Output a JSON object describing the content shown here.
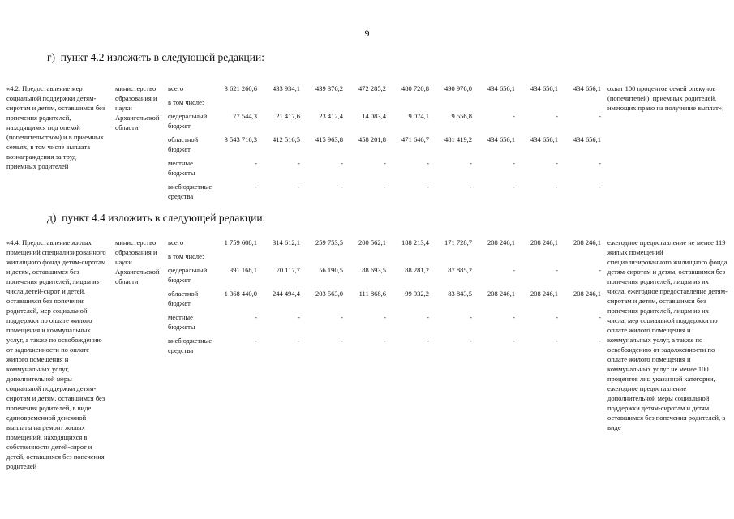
{
  "page": {
    "number": "9"
  },
  "sections": [
    {
      "heading": "г)  пункт 4.2 изложить в следующей редакции:",
      "table": {
        "description": "«4.2. Предоставление мер социальной поддержки детям-сиротам и детям, оставшимся без попечения родителей, находящимся под опекой (попечительством) и в приемных семьях, в том числе выплата вознаграждения за труд приемных родителей",
        "ministry": "министерство образования и науки Архангельской области",
        "subtotal_label": "в том числе:",
        "rows": [
          {
            "label": "всего",
            "values": [
              "3 621 260,6",
              "433 934,1",
              "439 376,2",
              "472 285,2",
              "480 720,8",
              "490 976,0",
              "434 656,1",
              "434 656,1",
              "434 656,1"
            ]
          },
          {
            "label": "федеральный бюджет",
            "values": [
              "77 544,3",
              "21 417,6",
              "23 412,4",
              "14 083,4",
              "9 074,1",
              "9 556,8",
              "-",
              "-",
              "-"
            ]
          },
          {
            "label": "областной бюджет",
            "values": [
              "3 543 716,3",
              "412 516,5",
              "415 963,8",
              "458 201,8",
              "471 646,7",
              "481 419,2",
              "434 656,1",
              "434 656,1",
              "434 656,1"
            ]
          },
          {
            "label": "местные бюджеты",
            "values": [
              "-",
              "-",
              "-",
              "-",
              "-",
              "-",
              "-",
              "-",
              "-"
            ]
          },
          {
            "label": "внебюджетные средства",
            "values": [
              "-",
              "-",
              "-",
              "-",
              "-",
              "-",
              "-",
              "-",
              "-"
            ]
          }
        ],
        "annotation": "охват 100 процентов семей опекунов (попечителей), приемных родителей, имеющих право на получение выплат»;"
      }
    },
    {
      "heading": "д)  пункт 4.4 изложить в следующей редакции:",
      "table": {
        "description": "«4.4. Предоставление жилых помещений специализированного жилищного фонда детям-сиротам и детям, оставшимся без попечения родителей, лицам из числа детей-сирот и детей, оставшихся без попечения родителей, мер социальной поддержки по оплате жилого помещения и коммунальных услуг, а также по освобождению от задолженности по оплате жилого помещения и коммунальных услуг, дополнительной меры социальной поддержки детям-сиротам и детям, оставшимся без попечения родителей, в виде единовременной денежной выплаты на ремонт жилых помещений, находящихся в собственности детей-сирот и детей, оставшихся без попечения родителей",
        "ministry": "министерство образования и науки Архангельской области",
        "subtotal_label": "в том числе:",
        "rows": [
          {
            "label": "всего",
            "values": [
              "1 759 608,1",
              "314 612,1",
              "259 753,5",
              "200 562,1",
              "188 213,4",
              "171 728,7",
              "208 246,1",
              "208 246,1",
              "208 246,1"
            ]
          },
          {
            "label": "федеральный бюджет",
            "values": [
              "391 168,1",
              "70 117,7",
              "56 190,5",
              "88 693,5",
              "88 281,2",
              "87 885,2",
              "-",
              "-",
              "-"
            ]
          },
          {
            "label": "областной бюджет",
            "values": [
              "1 368 440,0",
              "244 494,4",
              "203 563,0",
              "111 868,6",
              "99 932,2",
              "83 843,5",
              "208 246,1",
              "208 246,1",
              "208 246,1"
            ]
          },
          {
            "label": "местные бюджеты",
            "values": [
              "-",
              "-",
              "-",
              "-",
              "-",
              "-",
              "-",
              "-",
              "-"
            ]
          },
          {
            "label": "внебюджетные средства",
            "values": [
              "-",
              "-",
              "-",
              "-",
              "-",
              "-",
              "-",
              "-",
              "-"
            ]
          }
        ],
        "annotation": "ежегодное предоставление не менее 119 жилых помещений специализированного жилищного фонда детям-сиротам и детям, оставшимся без попечения родителей, лицам из их числа, ежегодное предоставление детям-сиротам и детям, оставшимся без попечения родителей, лицам из их числа, мер социальной поддержки по оплате жилого помещения и коммунальных услуг, а также по освобождению от задолженности по оплате жилого помещения и коммунальных услуг не менее 100 процентов лиц указанной категории, ежегодное предоставление дополнительной меры социальной поддержки детям-сиротам и детям, оставшимся без попечения родителей, в виде"
      }
    }
  ]
}
